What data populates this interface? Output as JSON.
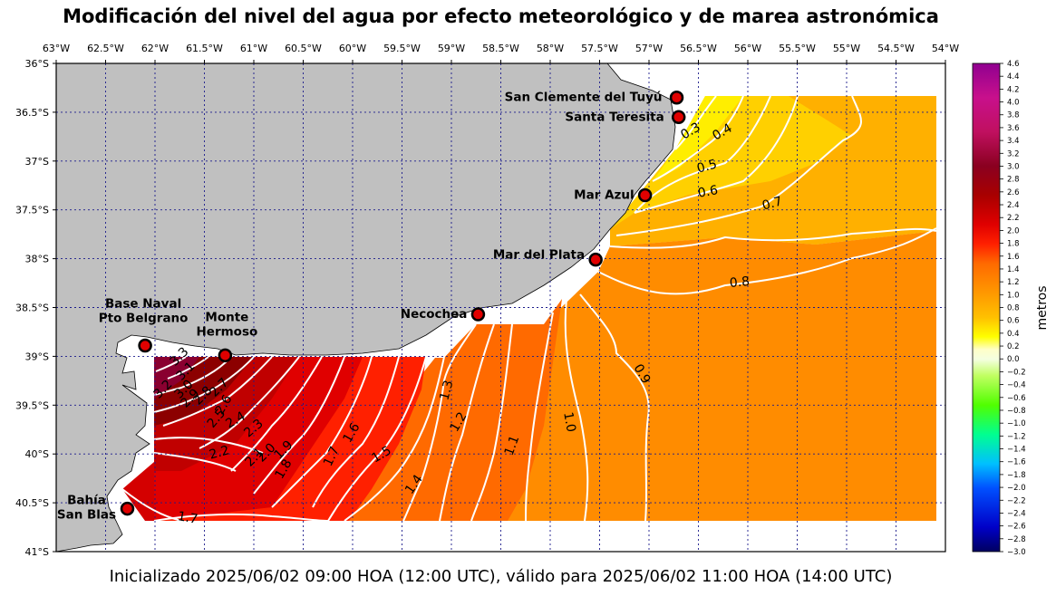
{
  "title": "Modificación del nivel del agua por efecto meteorológico y de marea astronómica",
  "subtitle": "Inicializado 2025/06/02 09:00 HOA (12:00 UTC), válido para 2025/06/02 11:00 HOA (14:00 UTC)",
  "colorbar": {
    "unit_label": "metros",
    "min": -3.0,
    "max": 4.6,
    "ticks": [
      "4.6",
      "4.4",
      "4.2",
      "4.0",
      "3.8",
      "3.6",
      "3.4",
      "3.2",
      "3.0",
      "2.8",
      "2.6",
      "2.4",
      "2.2",
      "2.0",
      "1.8",
      "1.6",
      "1.4",
      "1.2",
      "1.0",
      "0.8",
      "0.6",
      "0.4",
      "0.2",
      "0.0",
      "−0.2",
      "−0.4",
      "−0.6",
      "−0.8",
      "−1.0",
      "−1.2",
      "−1.4",
      "−1.6",
      "−1.8",
      "−2.0",
      "−2.2",
      "−2.4",
      "−2.6",
      "−2.8",
      "−3.0"
    ]
  },
  "map": {
    "lon_ticks": [
      "63°W",
      "62.5°W",
      "62°W",
      "61.5°W",
      "61°W",
      "60.5°W",
      "60°W",
      "59.5°W",
      "59°W",
      "58.5°W",
      "58°W",
      "57.5°W",
      "57°W",
      "56.5°W",
      "56°W",
      "55.5°W",
      "55°W",
      "54.5°W",
      "54°W"
    ],
    "lat_ticks": [
      "36°S",
      "36.5°S",
      "37°S",
      "37.5°S",
      "38°S",
      "38.5°S",
      "39°S",
      "39.5°S",
      "40°S",
      "40.5°S",
      "41°S"
    ],
    "lon_range": [
      -63.0,
      -54.0
    ],
    "lat_range": [
      -41.0,
      -36.0
    ],
    "colors": {
      "land": "#c0c0c0",
      "grid": "#1a1a8c",
      "contour": "#ffffff",
      "station": "#e00000"
    }
  },
  "stations": [
    {
      "name": "San Clemente del Tuyú",
      "lon": -56.72,
      "lat": -36.35
    },
    {
      "name": "Santa Teresita",
      "lon": -56.7,
      "lat": -36.55
    },
    {
      "name": "Mar Azul",
      "lon": -57.04,
      "lat": -37.35
    },
    {
      "name": "Mar del Plata",
      "lon": -57.54,
      "lat": -38.01
    },
    {
      "name": "Necochea",
      "lon": -58.73,
      "lat": -38.57
    },
    {
      "name": "Base Naval\nPto Belgrano",
      "lon": -62.1,
      "lat": -38.89
    },
    {
      "name": "Monte\nHermoso",
      "lon": -61.29,
      "lat": -38.99
    },
    {
      "name": "Bahía\nSan Blas",
      "lon": -62.28,
      "lat": -40.56
    }
  ],
  "contour_labels": [
    "0.3",
    "0.4",
    "0.5",
    "0.6",
    "0.7",
    "0.8",
    "0.9",
    "1.0",
    "1.1",
    "1.2",
    "1.3",
    "1.4",
    "1.5",
    "1.6",
    "1.7",
    "1.7",
    "1.8",
    "1.9",
    "2.0",
    "2.1",
    "2.2",
    "2.3",
    "2.4",
    "2.5",
    "2.6",
    "2.7",
    "2.8",
    "2.9",
    "3.0",
    "3.1",
    "3.2",
    "3.3"
  ]
}
